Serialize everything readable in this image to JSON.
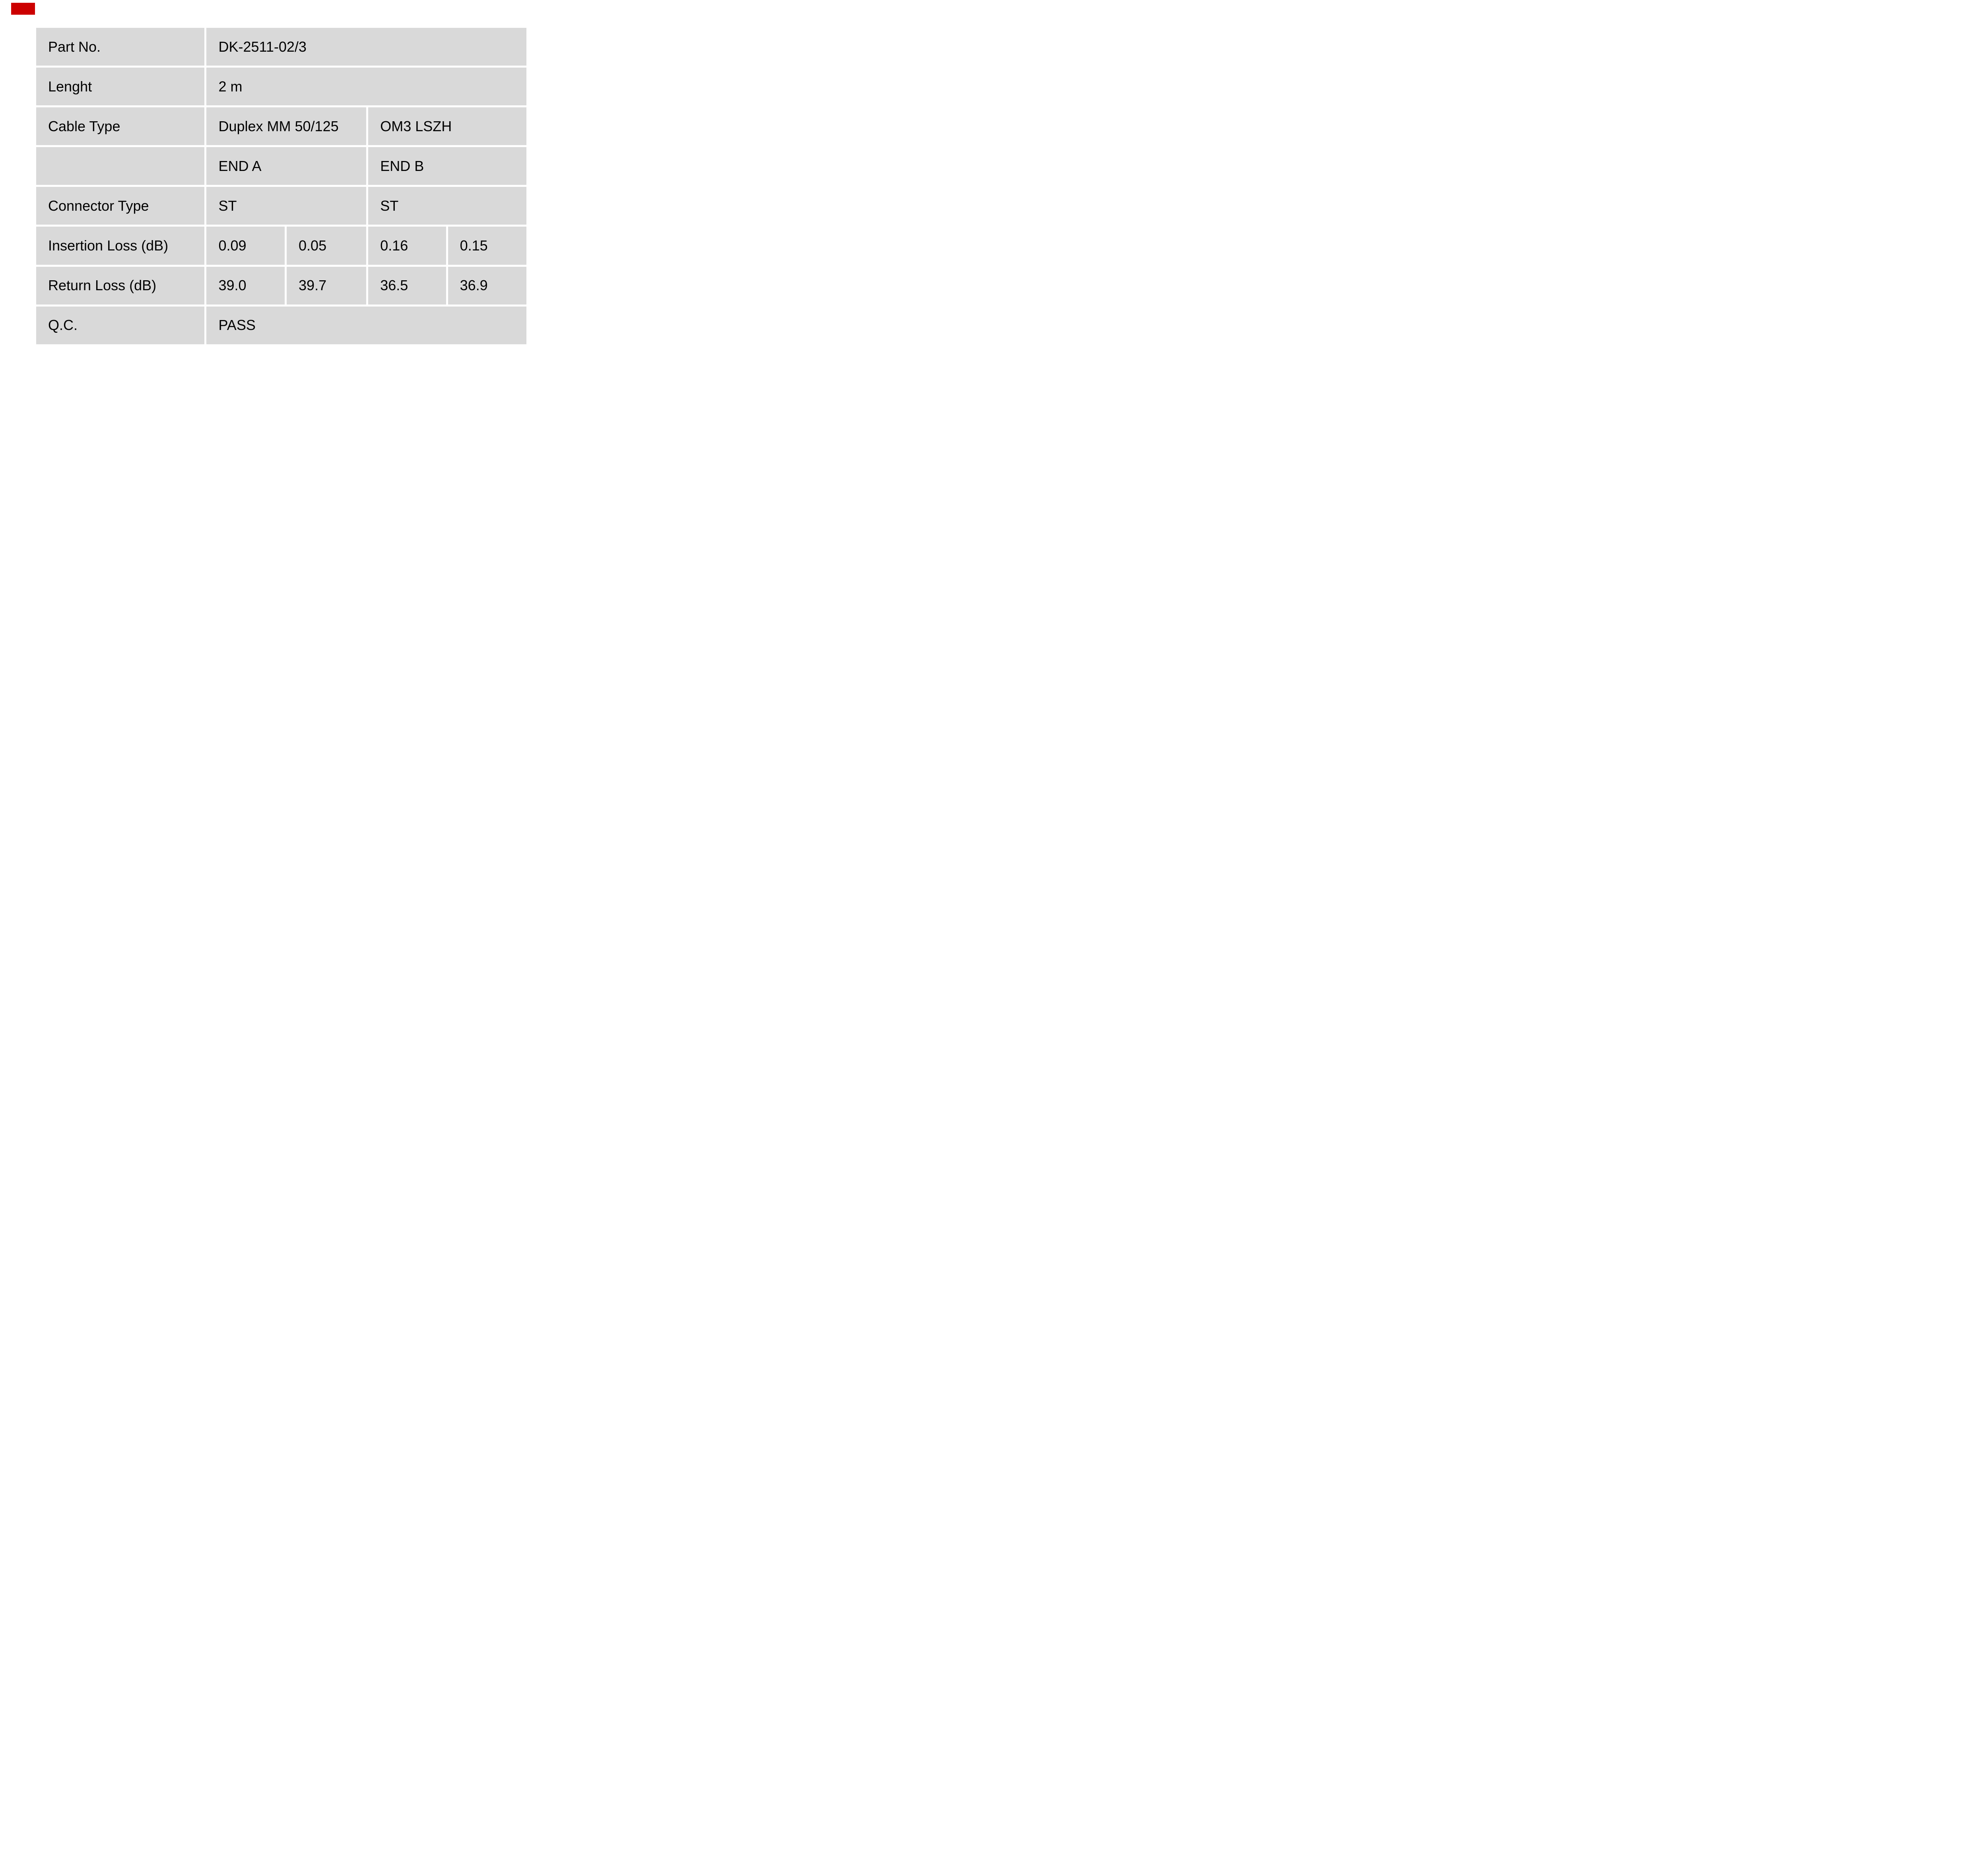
{
  "page": {
    "background": "#ffffff"
  },
  "logo": {
    "name": "red-brand-mark",
    "color": "#cc0000"
  },
  "table": {
    "cell_bg": "#d9d9d9",
    "gutter_color": "#ffffff",
    "text_color": "#000000",
    "end_columns": [
      "END A",
      "END B"
    ],
    "rows": [
      {
        "label": "Part No.",
        "cells": [
          {
            "text": "DK-2511-02/3",
            "span": 4
          }
        ]
      },
      {
        "label": "Lenght",
        "cells": [
          {
            "text": "2 m",
            "span": 4
          }
        ]
      },
      {
        "label": "Cable Type",
        "cells": [
          {
            "text": "Duplex MM 50/125",
            "span": 2
          },
          {
            "text": "OM3 LSZH",
            "span": 2
          }
        ]
      },
      {
        "label": "",
        "cells": [
          {
            "text": "END A",
            "span": 2
          },
          {
            "text": "END B",
            "span": 2
          }
        ]
      },
      {
        "label": "Connector Type",
        "cells": [
          {
            "text": "ST",
            "span": 2
          },
          {
            "text": "ST",
            "span": 2
          }
        ]
      },
      {
        "label": "Insertion Loss (dB)",
        "cells": [
          {
            "text": "0.09",
            "span": 1
          },
          {
            "text": "0.05",
            "span": 1
          },
          {
            "text": "0.16",
            "span": 1
          },
          {
            "text": "0.15",
            "span": 1
          }
        ]
      },
      {
        "label": "Return Loss (dB)",
        "cells": [
          {
            "text": "39.0",
            "span": 1
          },
          {
            "text": "39.7",
            "span": 1
          },
          {
            "text": "36.5",
            "span": 1
          },
          {
            "text": "36.9",
            "span": 1
          }
        ]
      },
      {
        "label": "Q.C.",
        "cells": [
          {
            "text": "PASS",
            "span": 4
          }
        ]
      }
    ]
  }
}
